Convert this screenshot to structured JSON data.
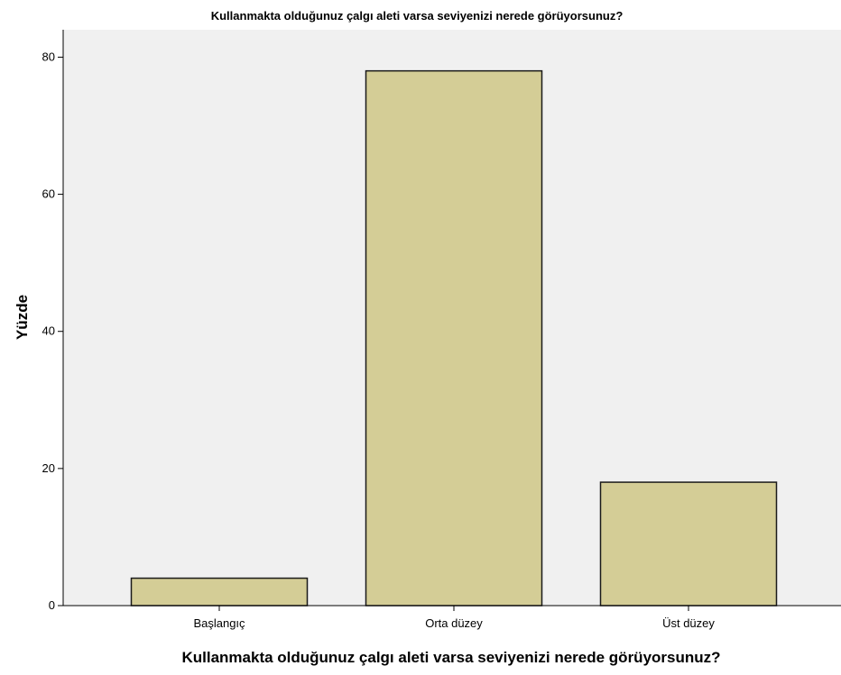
{
  "chart_data": {
    "type": "bar",
    "title": "Kullanmakta olduğunuz çalgı aleti varsa seviyenizi nerede görüyorsunuz?",
    "xlabel": "Kullanmakta olduğunuz çalgı aleti varsa seviyenizi nerede görüyorsunuz?",
    "ylabel": "Yüzde",
    "categories": [
      "Başlangıç",
      "Orta düzey",
      "Üst düzey"
    ],
    "values": [
      4,
      78,
      18
    ],
    "ylim": [
      0,
      84
    ],
    "yticks": [
      0,
      20,
      40,
      60,
      80
    ],
    "grid": false,
    "legend": "none",
    "colors": {
      "bar_fill": "#d4cd96",
      "bar_stroke": "#1a1a1a",
      "plot_background": "#f0f0f0",
      "axis": "#000000"
    }
  }
}
